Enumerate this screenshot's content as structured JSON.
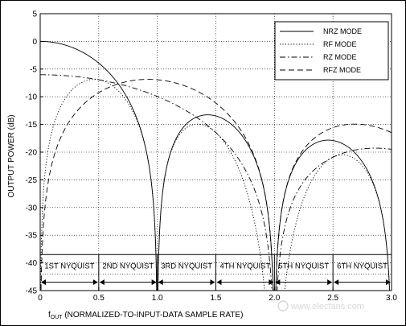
{
  "chart_data": {
    "type": "line",
    "xlabel_prefix": "f",
    "xlabel_sub": "OUT",
    "xlabel_rest": " (NORMALIZED-TO-INPUT-DATA SAMPLE RATE)",
    "ylabel": "OUTPUT POWER (dB)",
    "xlim": [
      0,
      3
    ],
    "ylim": [
      -45,
      5
    ],
    "x_ticks": [
      0,
      0.5,
      1.0,
      1.5,
      2.0,
      2.5,
      3.0
    ],
    "x_tick_labels": [
      "0",
      "0.5",
      "1.0",
      "1.5",
      "2.0",
      "2.5",
      "3.0"
    ],
    "y_ticks": [
      5,
      0,
      -5,
      -10,
      -15,
      -20,
      -25,
      -30,
      -35,
      -40,
      -45
    ],
    "y_tick_labels": [
      "5",
      "0",
      "-5",
      "-10",
      "-15",
      "-20",
      "-25",
      "-30",
      "-35",
      "-40",
      "-45"
    ],
    "grid": true,
    "legend_position": "top-right",
    "series": [
      {
        "name": "NRZ MODE",
        "dash": "solid"
      },
      {
        "name": "RF MODE",
        "dash": "dotted"
      },
      {
        "name": "RZ MODE",
        "dash": "dashdot"
      },
      {
        "name": "RFZ MODE",
        "dash": "dashed"
      }
    ],
    "nyquist_zones": [
      {
        "label": "1ST NYQUIST",
        "range": [
          0,
          0.5
        ]
      },
      {
        "label": "2ND NYQUIST",
        "range": [
          0.5,
          1.0
        ]
      },
      {
        "label": "3RD NYQUIST",
        "range": [
          1.0,
          1.5
        ]
      },
      {
        "label": "4TH NYQUIST",
        "range": [
          1.5,
          2.0
        ]
      },
      {
        "label": "5TH NYQUIST",
        "range": [
          2.0,
          2.5
        ]
      },
      {
        "label": "6TH NYQUIST",
        "range": [
          2.5,
          3.0
        ]
      }
    ]
  },
  "watermark": "www.elecfans.com",
  "colors": {
    "line": "#000000",
    "grid": "#000000",
    "background": "#ffffff"
  }
}
